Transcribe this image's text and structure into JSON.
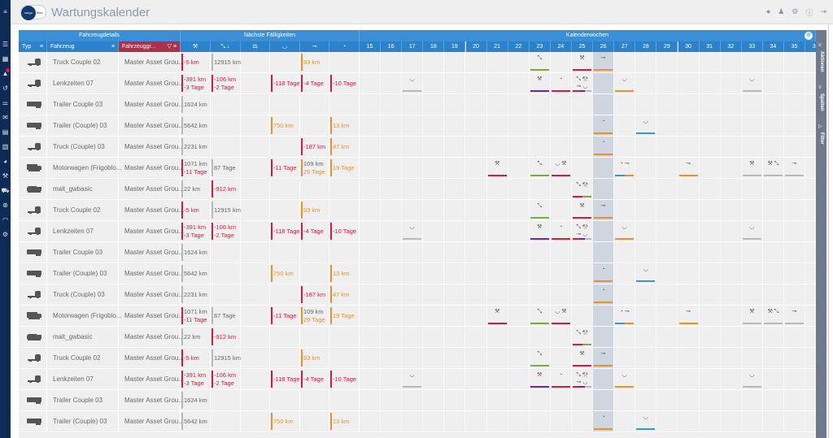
{
  "app": {
    "title": "Wartungskalender",
    "logo_text": "cargofleet"
  },
  "sidebar": {
    "icons": [
      "menu-icon",
      "list-icon",
      "map-icon",
      "alert-icon",
      "history-icon",
      "sliders-icon",
      "mail-icon",
      "document-icon",
      "report-icon",
      "pie-chart-icon",
      "wrench-icon",
      "truck-icon",
      "steering-wheel-icon",
      "speedometer-icon",
      "settings-icon"
    ]
  },
  "topbar": {
    "icons": [
      "chat-icon",
      "user-icon",
      "settings-icon",
      "info-icon",
      "logout-icon"
    ]
  },
  "header": {
    "group_details": "Fahrzeugdetails",
    "group_due": "Nächste Fälligkeiten",
    "group_calendar": "Kalenderwochen",
    "col_type": "Typ",
    "col_vehicle": "Fahrzeug",
    "col_group": "Fahrzeuggr...",
    "due_icons": [
      "wrench-icon",
      "arrows-icon",
      "brake-icon",
      "tire-icon",
      "axle-icon",
      "gauge-icon"
    ],
    "weeks": [
      "15",
      "16",
      "17",
      "18",
      "19",
      "20",
      "21",
      "22",
      "23",
      "24",
      "25",
      "26",
      "27",
      "28",
      "29",
      "30",
      "31",
      "32",
      "33",
      "34",
      "35",
      "36"
    ],
    "current_week": "26"
  },
  "right_panel": {
    "actions": "Aktionen",
    "columns": "Spalten",
    "filter": "Filter"
  },
  "colors": {
    "red": "#e0173c",
    "orange": "#e8912e",
    "grey": "#b8b8b8",
    "green": "#7aab3e",
    "purple": "#6a1fd0",
    "blue": "#3a95e0"
  },
  "vehicles": [
    {
      "type": "tractor",
      "name": "Truck Couple 02",
      "group": "Master Asset Grou...",
      "due": [
        {
          "c": "red",
          "l": [
            [
              "-5 km",
              "red"
            ]
          ]
        },
        {
          "c": "grey",
          "l": [
            [
              "12915 km",
              "grey"
            ]
          ]
        },
        null,
        null,
        {
          "c": "orange",
          "l": [
            [
              "93 km",
              "orange"
            ]
          ]
        },
        null
      ],
      "events": [
        {
          "w": "23",
          "i": [
            "arrows"
          ],
          "b": [
            "green"
          ]
        },
        {
          "w": "25",
          "i": [
            "wrench"
          ],
          "b": [
            "red"
          ]
        },
        {
          "w": "26",
          "i": [
            "axle"
          ],
          "b": [
            "orange"
          ]
        }
      ]
    },
    {
      "type": "tractor",
      "name": "Lenkzeiten 07",
      "group": "Master Asset Grou...",
      "due": [
        {
          "c": "red",
          "l": [
            [
              "-391 km",
              "red"
            ],
            [
              "-3 Tage",
              "red"
            ]
          ]
        },
        {
          "c": "red",
          "l": [
            [
              "-106 km",
              "red"
            ],
            [
              "-2 Tage",
              "red"
            ]
          ]
        },
        null,
        {
          "c": "red",
          "l": [
            [
              "-118 Tage",
              "red"
            ]
          ]
        },
        {
          "c": "red",
          "l": [
            [
              "-4 Tage",
              "red"
            ]
          ]
        },
        {
          "c": "red",
          "l": [
            [
              "-10 Tage",
              "red"
            ]
          ]
        }
      ],
      "events": [
        {
          "w": "17",
          "i": [
            "tire"
          ],
          "b": [
            "grey"
          ]
        },
        {
          "w": "23",
          "i": [
            "wrench"
          ],
          "b": [
            "purple"
          ]
        },
        {
          "w": "24",
          "i": [
            "gauge"
          ],
          "b": [
            "red"
          ]
        },
        {
          "w": "25",
          "i": [
            "arrows",
            "wrench",
            "axle",
            "tire"
          ],
          "b": [
            "red",
            "purple",
            "grey"
          ]
        },
        {
          "w": "27",
          "i": [
            "tire"
          ],
          "b": [
            "orange"
          ]
        },
        {
          "w": "33",
          "i": [
            "tire"
          ],
          "b": [
            "grey"
          ]
        }
      ]
    },
    {
      "type": "trailer",
      "name": "Trailer Couple 03",
      "group": "Master Asset Grou...",
      "due": [
        {
          "c": "grey",
          "l": [
            [
              "1624 km",
              "grey"
            ]
          ]
        },
        null,
        null,
        null,
        null,
        null
      ],
      "events": []
    },
    {
      "type": "trailer",
      "name": "Trailer (Couple) 03",
      "group": "Master Asset Grou...",
      "due": [
        {
          "c": "grey",
          "l": [
            [
              "5642 km",
              "grey"
            ]
          ]
        },
        null,
        null,
        {
          "c": "orange",
          "l": [
            [
              "750 km",
              "orange"
            ]
          ]
        },
        null,
        {
          "c": "orange",
          "l": [
            [
              "13 km",
              "orange"
            ]
          ]
        }
      ],
      "events": [
        {
          "w": "26",
          "i": [
            "gauge"
          ],
          "b": [
            "orange"
          ]
        },
        {
          "w": "28",
          "i": [
            "tire"
          ],
          "b": [
            "blue"
          ]
        }
      ]
    },
    {
      "type": "tractor",
      "name": "Truck (Couple) 03",
      "group": "Master Asset Grou...",
      "due": [
        {
          "c": "grey",
          "l": [
            [
              "2231 km",
              "grey"
            ]
          ]
        },
        null,
        null,
        null,
        {
          "c": "red",
          "l": [
            [
              "-187 km",
              "red"
            ]
          ]
        },
        {
          "c": "orange",
          "l": [
            [
              "47 km",
              "orange"
            ]
          ]
        }
      ],
      "events": [
        {
          "w": "26",
          "i": [
            "gauge"
          ],
          "b": [
            "orange"
          ]
        }
      ]
    },
    {
      "type": "boxtruck",
      "name": "Motorwagen (Frigoblo...",
      "group": "Master Asset Grou...",
      "due": [
        {
          "c": "red",
          "l": [
            [
              "1071 km",
              "grey"
            ],
            [
              "-11 Tage",
              "red"
            ]
          ]
        },
        {
          "c": "grey",
          "l": [
            [
              "87 Tage",
              "grey"
            ]
          ]
        },
        null,
        {
          "c": "red",
          "l": [
            [
              "-11 Tage",
              "red"
            ]
          ]
        },
        {
          "c": "orange",
          "l": [
            [
              "109 km",
              "grey"
            ],
            [
              "29 Tage",
              "orange"
            ]
          ]
        },
        {
          "c": "orange",
          "l": [
            [
              "19 Tage",
              "orange"
            ]
          ]
        }
      ],
      "events": [
        {
          "w": "21",
          "i": [
            "wrench"
          ],
          "b": [
            "red"
          ]
        },
        {
          "w": "23",
          "i": [
            "arrows"
          ],
          "b": [
            "green"
          ]
        },
        {
          "w": "24",
          "i": [
            "tire",
            "wrench"
          ],
          "b": [
            "red"
          ]
        },
        {
          "w": "27",
          "i": [
            "gauge",
            "axle"
          ],
          "b": [
            "blue",
            "orange"
          ]
        },
        {
          "w": "30",
          "i": [
            "axle"
          ],
          "b": [
            "orange"
          ]
        },
        {
          "w": "33",
          "i": [
            "wrench"
          ],
          "b": [
            "grey"
          ]
        },
        {
          "w": "34",
          "i": [
            "wrench",
            "arrows"
          ],
          "b": [
            "grey"
          ]
        },
        {
          "w": "35",
          "i": [
            "axle"
          ],
          "b": [
            "grey"
          ]
        }
      ]
    },
    {
      "type": "tipper",
      "name": "malt_gwbasic",
      "group": "Master Asset Grou...",
      "due": [
        {
          "c": "grey",
          "l": [
            [
              "22 km",
              "grey"
            ]
          ]
        },
        {
          "c": "red",
          "l": [
            [
              "-912 km",
              "red"
            ]
          ]
        },
        null,
        null,
        null,
        null
      ],
      "events": [
        {
          "w": "25",
          "i": [
            "arrows",
            "wrench"
          ],
          "b": [
            "red",
            "green"
          ]
        }
      ]
    }
  ],
  "row_order": [
    0,
    1,
    2,
    3,
    4,
    5,
    6,
    0,
    1,
    2,
    3,
    4,
    5,
    6,
    0,
    1,
    2,
    3
  ]
}
